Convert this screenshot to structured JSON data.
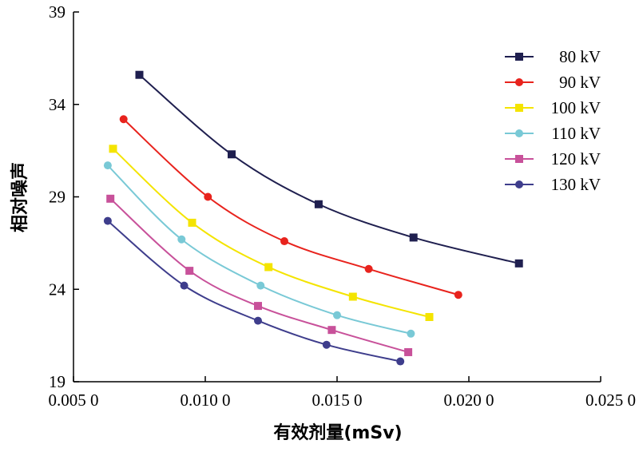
{
  "chart_data": {
    "type": "line",
    "xlabel": "有效剂量(mSv)",
    "ylabel": "相对噪声",
    "xlim": [
      0.005,
      0.025
    ],
    "ylim": [
      19,
      39
    ],
    "xticks": [
      0.005,
      0.01,
      0.015,
      0.02,
      0.025
    ],
    "xtick_labels": [
      "0.005 0",
      "0.010 0",
      "0.015 0",
      "0.020 0",
      "0.025 0"
    ],
    "yticks": [
      19,
      24,
      29,
      34,
      39
    ],
    "ytick_labels": [
      "19",
      "24",
      "29",
      "34",
      "39"
    ],
    "grid": false,
    "legend_position": "top-right",
    "series": [
      {
        "name": "80 kV",
        "color": "#1f1f4f",
        "marker": "square",
        "x": [
          0.0075,
          0.011,
          0.0143,
          0.0179,
          0.0219
        ],
        "y": [
          35.6,
          31.3,
          28.6,
          26.8,
          25.4
        ]
      },
      {
        "name": "90 kV",
        "color": "#e8231d",
        "marker": "circle",
        "x": [
          0.0069,
          0.0101,
          0.013,
          0.0162,
          0.0196
        ],
        "y": [
          33.2,
          29.0,
          26.6,
          25.1,
          23.7
        ]
      },
      {
        "name": "100 kV",
        "color": "#f4e400",
        "marker": "square",
        "x": [
          0.0065,
          0.0095,
          0.0124,
          0.0156,
          0.0185
        ],
        "y": [
          31.6,
          27.6,
          25.2,
          23.6,
          22.5
        ]
      },
      {
        "name": "110 kV",
        "color": "#79c9d6",
        "marker": "circle",
        "x": [
          0.0063,
          0.0091,
          0.0121,
          0.015,
          0.0178
        ],
        "y": [
          30.7,
          26.7,
          24.2,
          22.6,
          21.6
        ]
      },
      {
        "name": "120 kV",
        "color": "#c8519a",
        "marker": "square",
        "x": [
          0.0064,
          0.0094,
          0.012,
          0.0148,
          0.0177
        ],
        "y": [
          28.9,
          25.0,
          23.1,
          21.8,
          20.6
        ]
      },
      {
        "name": "130 kV",
        "color": "#3e3d8c",
        "marker": "circle",
        "x": [
          0.0063,
          0.0092,
          0.012,
          0.0146,
          0.0174
        ],
        "y": [
          27.7,
          24.2,
          22.3,
          21.0,
          20.1
        ]
      }
    ]
  }
}
